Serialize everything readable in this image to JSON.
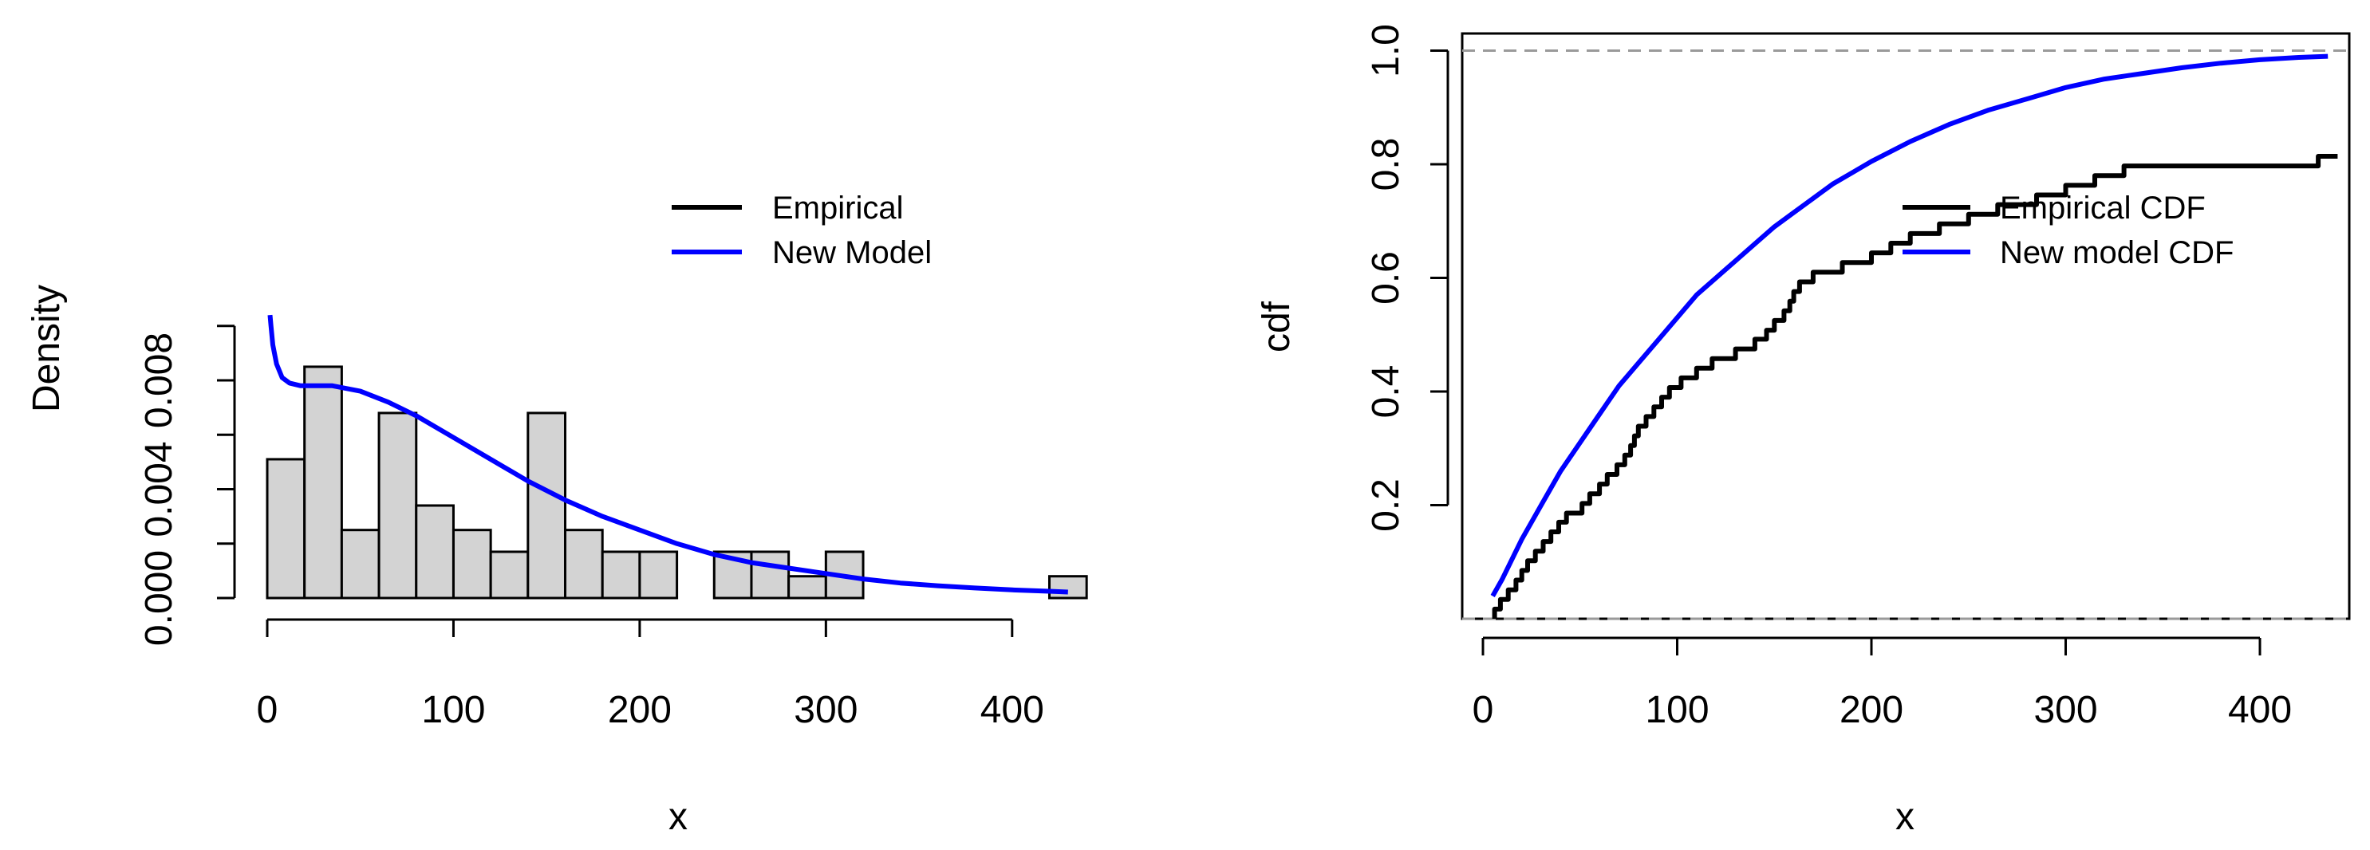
{
  "chart_data": [
    {
      "type": "bar",
      "subtype": "histogram-with-density",
      "xlabel": "x",
      "ylabel": "Density",
      "xlim": [
        0,
        440
      ],
      "ylim": [
        0,
        0.01
      ],
      "x_ticks": [
        "0",
        "100",
        "200",
        "300",
        "400"
      ],
      "y_ticks": [
        "0.000",
        "0.004",
        "0.008"
      ],
      "bin_width": 20,
      "bins": [
        {
          "from": 0,
          "to": 20,
          "density": 0.0051
        },
        {
          "from": 20,
          "to": 40,
          "density": 0.0085
        },
        {
          "from": 40,
          "to": 60,
          "density": 0.0025
        },
        {
          "from": 60,
          "to": 80,
          "density": 0.0068
        },
        {
          "from": 80,
          "to": 100,
          "density": 0.0034
        },
        {
          "from": 100,
          "to": 120,
          "density": 0.0025
        },
        {
          "from": 120,
          "to": 140,
          "density": 0.0017
        },
        {
          "from": 140,
          "to": 160,
          "density": 0.0068
        },
        {
          "from": 160,
          "to": 180,
          "density": 0.0025
        },
        {
          "from": 180,
          "to": 200,
          "density": 0.0017
        },
        {
          "from": 200,
          "to": 220,
          "density": 0.0017
        },
        {
          "from": 220,
          "to": 240,
          "density": 0
        },
        {
          "from": 240,
          "to": 260,
          "density": 0.0017
        },
        {
          "from": 260,
          "to": 280,
          "density": 0.0017
        },
        {
          "from": 280,
          "to": 300,
          "density": 0.0008
        },
        {
          "from": 300,
          "to": 320,
          "density": 0.0017
        },
        {
          "from": 320,
          "to": 340,
          "density": 0
        },
        {
          "from": 340,
          "to": 360,
          "density": 0
        },
        {
          "from": 360,
          "to": 380,
          "density": 0
        },
        {
          "from": 380,
          "to": 400,
          "density": 0
        },
        {
          "from": 400,
          "to": 420,
          "density": 0
        },
        {
          "from": 420,
          "to": 440,
          "density": 0.0008
        }
      ],
      "density_curve": {
        "name": "New Model",
        "color": "#0000ff",
        "x": [
          1.5,
          2,
          3,
          5,
          8,
          12,
          18,
          25,
          35,
          50,
          65,
          80,
          100,
          120,
          140,
          160,
          180,
          200,
          220,
          240,
          260,
          280,
          300,
          320,
          340,
          360,
          380,
          400,
          420,
          430
        ],
        "y": [
          0.0104,
          0.01,
          0.0093,
          0.0086,
          0.0081,
          0.0079,
          0.0078,
          0.0078,
          0.0078,
          0.0076,
          0.0072,
          0.0067,
          0.0059,
          0.0051,
          0.0043,
          0.0036,
          0.003,
          0.0025,
          0.002,
          0.0016,
          0.0013,
          0.0011,
          0.0009,
          0.0007,
          0.00055,
          0.00045,
          0.00037,
          0.0003,
          0.00025,
          0.00022
        ]
      },
      "legend": {
        "position": "top-right",
        "entries": [
          {
            "label": "Empirical",
            "color": "#000000"
          },
          {
            "label": "New Model",
            "color": "#0000ff"
          }
        ]
      }
    },
    {
      "type": "line",
      "subtype": "cdf",
      "xlabel": "x",
      "ylabel": "cdf",
      "xlim": [
        -10,
        445
      ],
      "ylim": [
        0,
        1.03
      ],
      "x_ticks": [
        "0",
        "100",
        "200",
        "300",
        "400"
      ],
      "y_ticks": [
        "0.2",
        "0.4",
        "0.6",
        "0.8",
        "1.0"
      ],
      "reference_lines": [
        0,
        1
      ],
      "series": [
        {
          "name": "Empirical CDF",
          "color": "#000000",
          "step": true,
          "x": [
            6,
            9,
            13,
            17,
            20,
            23,
            27,
            31,
            35,
            39,
            43,
            51,
            55,
            60,
            64,
            69,
            73,
            76,
            78,
            80,
            84,
            88,
            92,
            96,
            102,
            110,
            118,
            130,
            140,
            146,
            150,
            155,
            158,
            160,
            163,
            170,
            185,
            200,
            210,
            220,
            235,
            250,
            265,
            285,
            300,
            315,
            330,
            430
          ],
          "y": [
            0.017,
            0.034,
            0.051,
            0.068,
            0.085,
            0.102,
            0.119,
            0.136,
            0.153,
            0.17,
            0.186,
            0.203,
            0.22,
            0.237,
            0.254,
            0.271,
            0.288,
            0.305,
            0.322,
            0.339,
            0.356,
            0.373,
            0.39,
            0.407,
            0.424,
            0.441,
            0.458,
            0.475,
            0.492,
            0.508,
            0.525,
            0.542,
            0.559,
            0.576,
            0.593,
            0.61,
            0.627,
            0.644,
            0.661,
            0.678,
            0.695,
            0.712,
            0.729,
            0.746,
            0.763,
            0.78,
            0.797,
            0.814
          ]
        },
        {
          "name": "New model CDF",
          "color": "#0000ff",
          "x": [
            5,
            10,
            20,
            30,
            40,
            50,
            60,
            70,
            80,
            90,
            100,
            110,
            120,
            130,
            140,
            150,
            160,
            170,
            180,
            190,
            200,
            220,
            240,
            260,
            280,
            300,
            320,
            340,
            360,
            380,
            400,
            420,
            435
          ],
          "y": [
            0.04,
            0.07,
            0.14,
            0.2,
            0.26,
            0.31,
            0.36,
            0.41,
            0.45,
            0.49,
            0.53,
            0.57,
            0.6,
            0.63,
            0.66,
            0.69,
            0.715,
            0.74,
            0.765,
            0.785,
            0.805,
            0.84,
            0.87,
            0.895,
            0.915,
            0.935,
            0.95,
            0.96,
            0.97,
            0.978,
            0.984,
            0.988,
            0.99
          ]
        }
      ],
      "legend": {
        "position": "right",
        "entries": [
          {
            "label": "Empirical CDF",
            "color": "#000000"
          },
          {
            "label": "New model CDF",
            "color": "#0000ff"
          }
        ]
      }
    }
  ]
}
